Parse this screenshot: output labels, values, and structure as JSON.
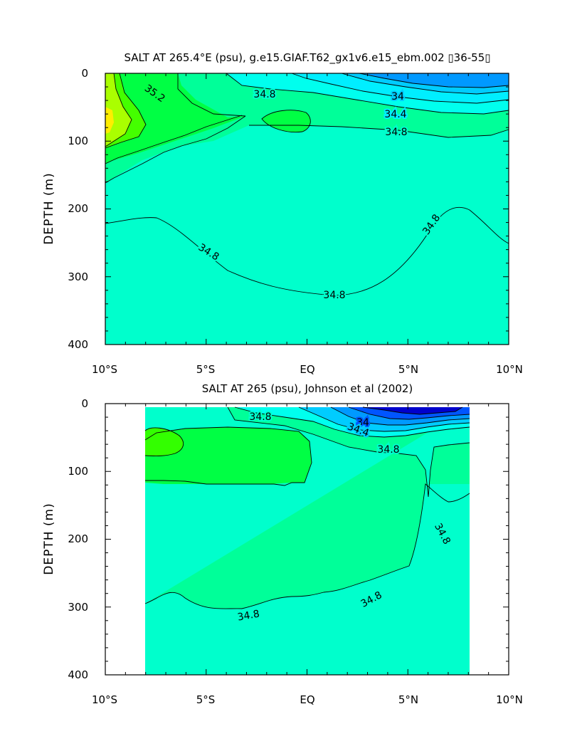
{
  "chart_data": [
    {
      "type": "contour",
      "title": "SALT AT 265.4°E (psu), g.e15.GIAF.T62_gx1v6.e15_ebm.002 ▯36-55▯",
      "xlabel": "",
      "ylabel": "DEPTH (m)",
      "xlim": [
        -10,
        10
      ],
      "ylim": [
        400,
        0
      ],
      "x_ticks": [
        -10,
        -5,
        0,
        5,
        10
      ],
      "x_tick_labels": [
        "10°S",
        "5°S",
        "EQ",
        "5°N",
        "10°N"
      ],
      "y_ticks": [
        0,
        100,
        200,
        300,
        400
      ],
      "y_tick_labels": [
        "0",
        "100",
        "200",
        "300",
        "400"
      ],
      "contour_labels": [
        {
          "text": "35.2",
          "x": -7.2,
          "y": 32
        },
        {
          "text": "34.8",
          "x": -2.9,
          "y": 26
        },
        {
          "text": "34",
          "x": 4.5,
          "y": 32
        },
        {
          "text": "34.4",
          "x": 4.3,
          "y": 58
        },
        {
          "text": "34.8",
          "x": 4.3,
          "y": 83
        },
        {
          "text": "34.8",
          "x": -5.3,
          "y": 268
        },
        {
          "text": "34.8",
          "x": 1.3,
          "y": 326
        },
        {
          "text": "34.8",
          "x": 6.7,
          "y": 218
        }
      ]
    },
    {
      "type": "contour",
      "title": "SALT AT 265 (psu), Johnson et al (2002)",
      "xlabel": "",
      "ylabel": "DEPTH (m)",
      "xlim": [
        -10,
        10
      ],
      "ylim": [
        400,
        0
      ],
      "data_range_x": [
        -8,
        8
      ],
      "x_ticks": [
        -10,
        -5,
        0,
        5,
        10
      ],
      "x_tick_labels": [
        "10°S",
        "5°S",
        "EQ",
        "5°N",
        "10°N"
      ],
      "y_ticks": [
        0,
        100,
        200,
        300,
        400
      ],
      "y_tick_labels": [
        "0",
        "100",
        "200",
        "300",
        "400"
      ],
      "contour_labels": [
        {
          "text": "34.8",
          "x": -2.7,
          "y": 20
        },
        {
          "text": "34",
          "x": 2.5,
          "y": 28
        },
        {
          "text": "34.4",
          "x": 2.3,
          "y": 37
        },
        {
          "text": "34.8",
          "x": 3.4,
          "y": 65
        },
        {
          "text": "34.8",
          "x": 6.9,
          "y": 190
        },
        {
          "text": "34.8",
          "x": 3.3,
          "y": 295
        },
        {
          "text": "34.8",
          "x": -2.8,
          "y": 338
        }
      ]
    }
  ]
}
